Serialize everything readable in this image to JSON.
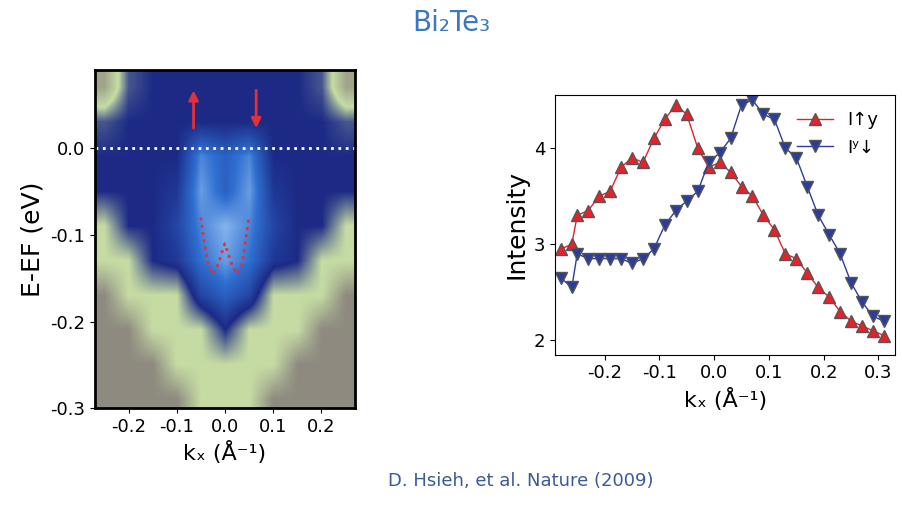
{
  "title": "Bi₂Te₃",
  "note": "D. Hsieh, et al. Nature (2009)",
  "chart_data": [
    {
      "type": "heatmap",
      "xlabel": "kₓ (Å⁻¹)",
      "ylabel": "E-EF (eV)",
      "xlim": [
        -0.27,
        0.27
      ],
      "ylim": [
        -0.3,
        0.09
      ],
      "xticks": [
        -0.2,
        -0.1,
        0.0,
        0.1,
        0.2
      ],
      "yticks": [
        -0.3,
        -0.2,
        -0.1,
        0.0
      ],
      "x": [
        -0.25,
        -0.2,
        -0.15,
        -0.1,
        -0.05,
        0.0,
        0.05,
        0.1,
        0.15,
        0.2,
        0.25
      ],
      "y": [
        0.07,
        0.03,
        -0.01,
        -0.05,
        -0.09,
        -0.13,
        -0.17,
        -0.21,
        -0.25,
        -0.29
      ],
      "color_range": [
        0,
        1
      ],
      "cells": [
        [
          0.1,
          0.45,
          0.5,
          0.5,
          0.5,
          0.5,
          0.5,
          0.5,
          0.5,
          0.45,
          0.1
        ],
        [
          0.45,
          0.5,
          0.5,
          0.5,
          0.5,
          0.5,
          0.5,
          0.5,
          0.5,
          0.5,
          0.45
        ],
        [
          0.5,
          0.5,
          0.5,
          0.5,
          0.8,
          0.7,
          0.8,
          0.5,
          0.5,
          0.5,
          0.5
        ],
        [
          0.5,
          0.5,
          0.5,
          0.55,
          0.85,
          0.7,
          0.85,
          0.55,
          0.5,
          0.5,
          0.5
        ],
        [
          0.3,
          0.5,
          0.5,
          0.6,
          0.8,
          0.9,
          0.8,
          0.6,
          0.5,
          0.5,
          0.3
        ],
        [
          0.3,
          0.3,
          0.5,
          0.55,
          0.75,
          0.85,
          0.75,
          0.55,
          0.5,
          0.3,
          0.3
        ],
        [
          0.0,
          0.3,
          0.3,
          0.3,
          0.6,
          0.7,
          0.6,
          0.3,
          0.3,
          0.3,
          0.0
        ],
        [
          0.0,
          0.0,
          0.3,
          0.3,
          0.3,
          0.5,
          0.3,
          0.3,
          0.3,
          0.0,
          0.0
        ],
        [
          0.0,
          0.0,
          0.0,
          0.3,
          0.3,
          0.3,
          0.3,
          0.3,
          0.0,
          0.0,
          0.0
        ],
        [
          0.0,
          0.0,
          0.0,
          0.0,
          0.3,
          0.3,
          0.3,
          0.0,
          0.0,
          0.0,
          0.0
        ]
      ],
      "series": [
        {
          "color": "#ffffff",
          "line_style": "dotted",
          "x": [
            -0.27,
            0.27
          ],
          "values": [
            0.0,
            0.0
          ]
        },
        {
          "color": "#e0303a",
          "line_style": "dotted",
          "x": [
            -0.05,
            -0.045,
            -0.035,
            -0.025,
            -0.015,
            0.0,
            0.015,
            0.025,
            0.035,
            0.045,
            0.05
          ],
          "values": [
            -0.08,
            -0.1,
            -0.135,
            -0.145,
            -0.135,
            -0.11,
            -0.135,
            -0.145,
            -0.135,
            -0.1,
            -0.08
          ]
        }
      ],
      "arrows": [
        {
          "x": -0.065,
          "y_from": 0.02,
          "y_to": 0.07,
          "color": "#e0303a"
        },
        {
          "x": 0.065,
          "y_from": 0.07,
          "y_to": 0.02,
          "color": "#e0303a"
        }
      ]
    },
    {
      "type": "line",
      "ylabel": "Intensity",
      "xlabel": "kₓ (Å⁻¹)",
      "xlim": [
        -0.29,
        0.33
      ],
      "ylim": [
        1.85,
        4.55
      ],
      "xticks": [
        -0.2,
        -0.1,
        0.0,
        0.1,
        0.2,
        0.3
      ],
      "yticks": [
        2,
        3,
        4
      ],
      "legend": "upper right",
      "x": [
        -0.28,
        -0.26,
        -0.25,
        -0.23,
        -0.21,
        -0.19,
        -0.17,
        -0.15,
        -0.13,
        -0.11,
        -0.09,
        -0.07,
        -0.05,
        -0.03,
        -0.01,
        0.01,
        0.03,
        0.05,
        0.07,
        0.09,
        0.11,
        0.13,
        0.15,
        0.17,
        0.19,
        0.21,
        0.23,
        0.25,
        0.27,
        0.29,
        0.31
      ],
      "series": [
        {
          "name": "I↑y",
          "color": "#e8202a",
          "marker": "triangle_up",
          "values": [
            2.95,
            3.0,
            3.3,
            3.35,
            3.5,
            3.55,
            3.8,
            3.9,
            3.85,
            4.1,
            4.3,
            4.45,
            4.35,
            4.0,
            3.8,
            3.85,
            3.75,
            3.6,
            3.5,
            3.3,
            3.15,
            2.9,
            2.85,
            2.7,
            2.55,
            2.45,
            2.3,
            2.2,
            2.15,
            2.1,
            2.05
          ]
        },
        {
          "name": "Iʸ↓",
          "color": "#2a3d9c",
          "marker": "triangle_down",
          "values": [
            2.65,
            2.55,
            2.9,
            2.85,
            2.85,
            2.85,
            2.85,
            2.8,
            2.85,
            2.95,
            3.2,
            3.35,
            3.45,
            3.55,
            3.85,
            3.95,
            4.1,
            4.45,
            4.5,
            4.35,
            4.3,
            4.0,
            3.9,
            3.6,
            3.3,
            3.1,
            2.9,
            2.6,
            2.4,
            2.25,
            2.2
          ]
        }
      ]
    }
  ]
}
